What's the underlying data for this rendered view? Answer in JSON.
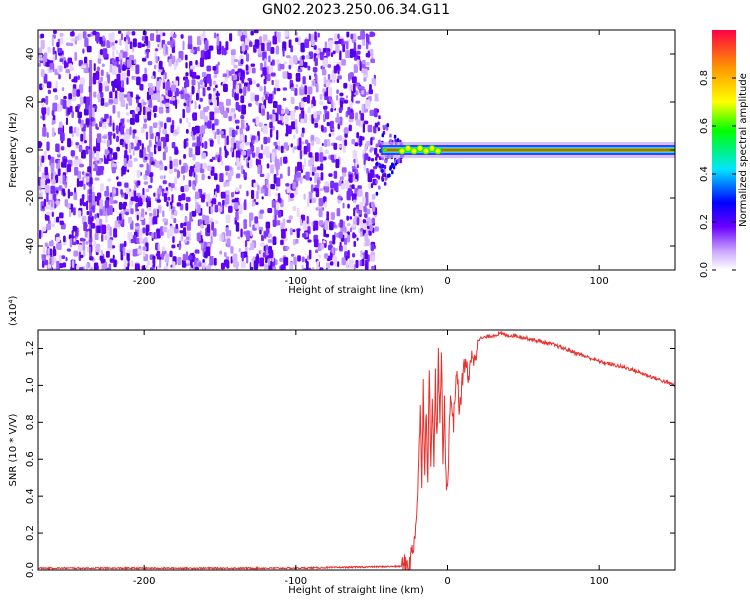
{
  "title": "GN02.2023.250.06.34.G11",
  "chart_data": [
    {
      "type": "heatmap",
      "name": "spectrogram",
      "xlabel": "Height of straight line (km)",
      "ylabel": "Frequency (Hz)",
      "xlim": [
        -270,
        150
      ],
      "ylim": [
        -50,
        50
      ],
      "xticks": [
        -200,
        -100,
        0,
        100
      ],
      "yticks": [
        -40,
        -20,
        0,
        20,
        40
      ],
      "noise_region_x": [
        -270,
        -48
      ],
      "transition_x": [
        -48,
        -30
      ],
      "tone_frequency_hz": 0,
      "colorbar": {
        "label": "Normalized spectral amplitude",
        "range": [
          0.0,
          1.0
        ],
        "ticks": [
          0.0,
          0.2,
          0.4,
          0.6,
          0.8
        ],
        "colormap": [
          "#ffffff",
          "#c9a5ff",
          "#6a00ff",
          "#0000ff",
          "#00e5ff",
          "#00ff00",
          "#ffff00",
          "#ff9900",
          "#ff0044"
        ]
      }
    },
    {
      "type": "line",
      "name": "snr",
      "xlabel": "Height of straight line (km)",
      "ylabel": "SNR (10 * V/V)",
      "yunit_multiplier": "(x10⁴)",
      "xlim": [
        -270,
        150
      ],
      "ylim": [
        0.0,
        1.3
      ],
      "xticks": [
        -200,
        -100,
        0,
        100
      ],
      "yticks": [
        0.0,
        0.2,
        0.4,
        0.6,
        0.8,
        1.0,
        1.2
      ],
      "color": "#e8302c",
      "series": [
        {
          "x": [
            -270,
            -200,
            -100,
            -30,
            -25,
            -22,
            -20,
            -19,
            -18,
            -17,
            -16,
            -15,
            -14,
            -13,
            -12,
            -11,
            -10,
            -9,
            -8,
            -7,
            -6,
            -5,
            -4,
            -3,
            -2,
            -1,
            0,
            2,
            4,
            6,
            8,
            10,
            12,
            14,
            16,
            18,
            20,
            25,
            30,
            35,
            40,
            45,
            50,
            60,
            70,
            80,
            90,
            100,
            110,
            120,
            130,
            140,
            150
          ],
          "y": [
            0.01,
            0.01,
            0.01,
            0.02,
            0.04,
            0.15,
            0.35,
            0.6,
            0.85,
            0.5,
            1.0,
            0.55,
            0.9,
            0.45,
            1.1,
            0.6,
            0.95,
            0.55,
            1.05,
            0.7,
            1.15,
            0.75,
            1.2,
            0.6,
            0.9,
            0.5,
            0.45,
            0.95,
            0.8,
            1.1,
            0.85,
            1.05,
            1.15,
            1.0,
            1.2,
            1.12,
            1.25,
            1.26,
            1.27,
            1.28,
            1.27,
            1.27,
            1.26,
            1.24,
            1.22,
            1.19,
            1.16,
            1.13,
            1.11,
            1.09,
            1.06,
            1.03,
            1.0
          ]
        }
      ]
    }
  ]
}
